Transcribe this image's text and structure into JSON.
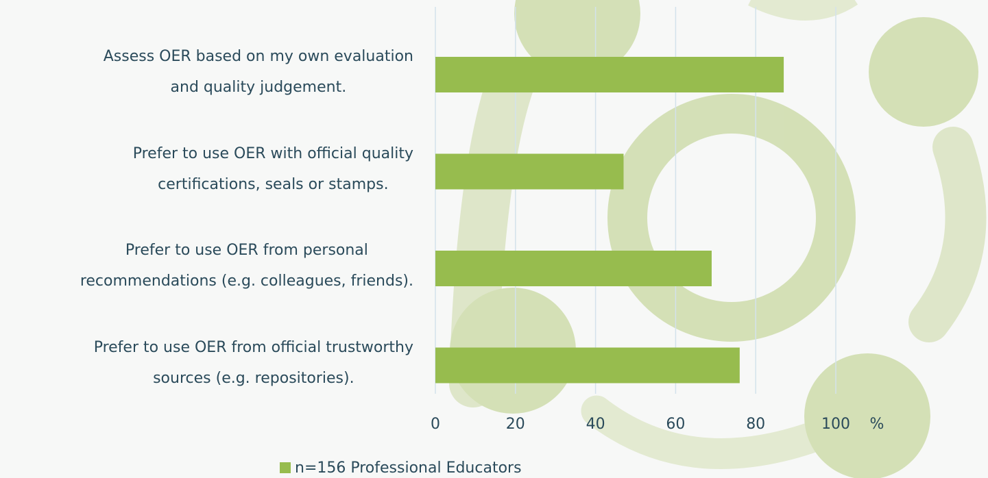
{
  "chart_data": {
    "type": "bar",
    "orientation": "horizontal",
    "categories": [
      "Assess OER based on my own evaluation\nand quality judgement.",
      "Prefer to use OER with official quality\ncertifications, seals or stamps.",
      "Prefer to use OER from personal\nrecommendations (e.g. colleagues, friends).",
      "Prefer to use OER from official trustworthy\nsources (e.g. repositories)."
    ],
    "series": [
      {
        "name": "n=156 Professional Educators",
        "color": "#97bc4e",
        "values": [
          87,
          47,
          69,
          76
        ]
      }
    ],
    "xlim": [
      0,
      100
    ],
    "xticks": [
      0,
      20,
      40,
      60,
      80,
      100
    ],
    "x_unit": "%",
    "grid": true,
    "legend": "bottom"
  }
}
